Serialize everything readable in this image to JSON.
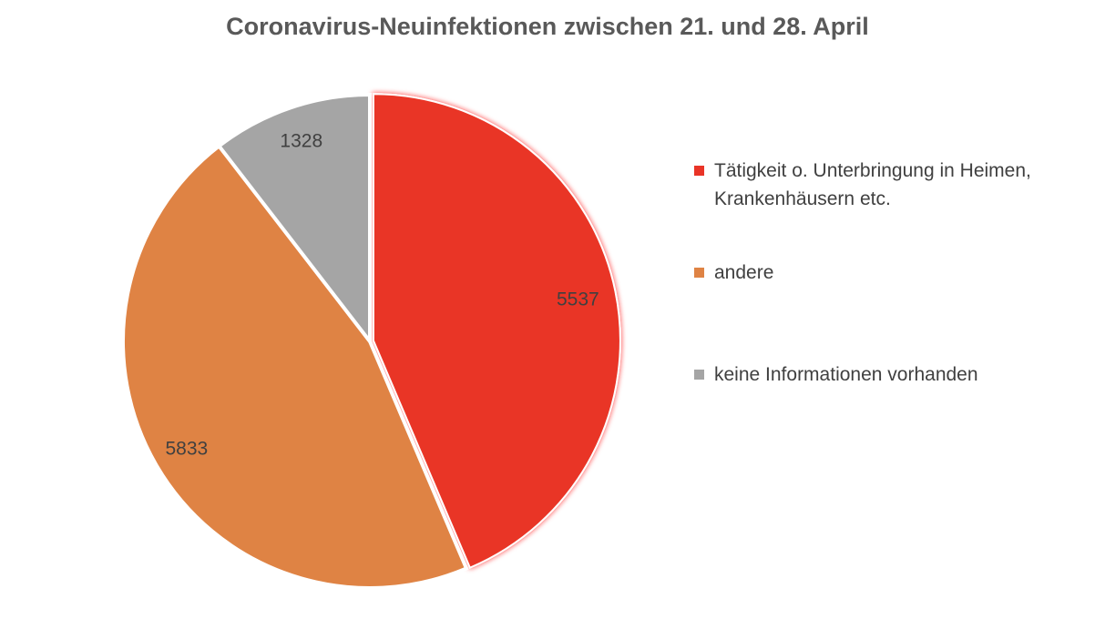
{
  "chart_data": {
    "type": "pie",
    "title": "Coronavirus-Neuinfektionen zwischen 21. und 28. April",
    "slices": [
      {
        "label": "Tätigkeit o. Unterbringung in Heimen, Krankenhäusern etc.",
        "value": 5537,
        "color": "#e93427",
        "exploded": true
      },
      {
        "label": "andere",
        "value": 5833,
        "color": "#df8344",
        "exploded": false
      },
      {
        "label": "keine Informationen vorhanden",
        "value": 1328,
        "color": "#a5a5a5",
        "exploded": false
      }
    ],
    "legend_position": "right"
  }
}
